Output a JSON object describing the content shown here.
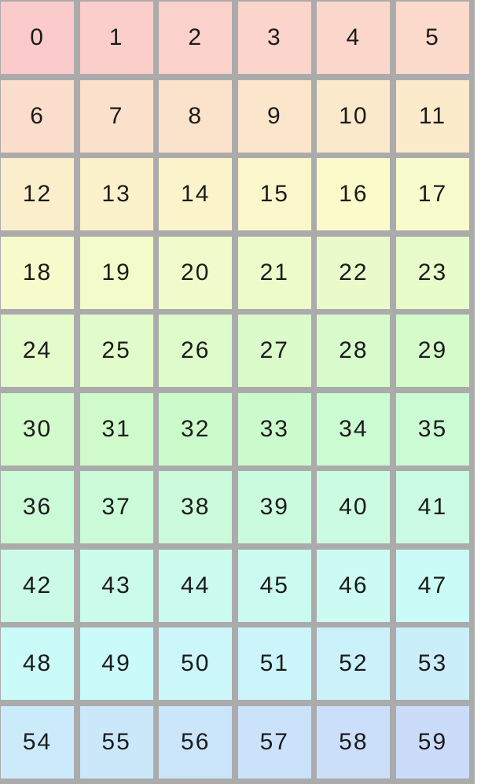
{
  "page": {
    "background_color": "#ffffff"
  },
  "grid": {
    "columns": 6,
    "rows": 10,
    "gap_color": "#ababab",
    "cell_text_color": "#1b1b1b",
    "cells": [
      {
        "label": "0",
        "color": "hsl(0.0, 85%, 89%)"
      },
      {
        "label": "1",
        "color": "hsl(3.7, 85%, 89%)"
      },
      {
        "label": "2",
        "color": "hsl(7.4, 85%, 89%)"
      },
      {
        "label": "3",
        "color": "hsl(11.1, 85%, 89%)"
      },
      {
        "label": "4",
        "color": "hsl(14.8, 85%, 89%)"
      },
      {
        "label": "5",
        "color": "hsl(18.5, 85%, 89%)"
      },
      {
        "label": "6",
        "color": "hsl(22.2, 85%, 89%)"
      },
      {
        "label": "7",
        "color": "hsl(25.9, 85%, 89%)"
      },
      {
        "label": "8",
        "color": "hsl(29.6, 85%, 89%)"
      },
      {
        "label": "9",
        "color": "hsl(33.3, 85%, 89%)"
      },
      {
        "label": "10",
        "color": "hsl(37.0, 85%, 89%)"
      },
      {
        "label": "11",
        "color": "hsl(40.7, 85%, 89%)"
      },
      {
        "label": "12",
        "color": "hsl(44.4, 85%, 89%)"
      },
      {
        "label": "13",
        "color": "hsl(48.1, 85%, 89%)"
      },
      {
        "label": "14",
        "color": "hsl(51.8, 85%, 89%)"
      },
      {
        "label": "15",
        "color": "hsl(55.5, 85%, 89%)"
      },
      {
        "label": "16",
        "color": "hsl(59.2, 85%, 89%)"
      },
      {
        "label": "17",
        "color": "hsl(62.9, 85%, 89%)"
      },
      {
        "label": "18",
        "color": "hsl(66.6, 85%, 89%)"
      },
      {
        "label": "19",
        "color": "hsl(70.3, 85%, 89%)"
      },
      {
        "label": "20",
        "color": "hsl(74.0, 85%, 89%)"
      },
      {
        "label": "21",
        "color": "hsl(77.7, 85%, 89%)"
      },
      {
        "label": "22",
        "color": "hsl(81.4, 85%, 89%)"
      },
      {
        "label": "23",
        "color": "hsl(85.1, 85%, 89%)"
      },
      {
        "label": "24",
        "color": "hsl(88.8, 85%, 89%)"
      },
      {
        "label": "25",
        "color": "hsl(92.5, 85%, 89%)"
      },
      {
        "label": "26",
        "color": "hsl(96.2, 85%, 89%)"
      },
      {
        "label": "27",
        "color": "hsl(99.9, 85%, 89%)"
      },
      {
        "label": "28",
        "color": "hsl(103.6, 85%, 89%)"
      },
      {
        "label": "29",
        "color": "hsl(107.3, 85%, 89%)"
      },
      {
        "label": "30",
        "color": "hsl(111.0, 85%, 89%)"
      },
      {
        "label": "31",
        "color": "hsl(114.7, 85%, 89%)"
      },
      {
        "label": "32",
        "color": "hsl(118.4, 85%, 89%)"
      },
      {
        "label": "33",
        "color": "hsl(122.1, 85%, 89%)"
      },
      {
        "label": "34",
        "color": "hsl(125.8, 85%, 89%)"
      },
      {
        "label": "35",
        "color": "hsl(129.5, 85%, 89%)"
      },
      {
        "label": "36",
        "color": "hsl(133.2, 85%, 89%)"
      },
      {
        "label": "37",
        "color": "hsl(136.9, 85%, 89%)"
      },
      {
        "label": "38",
        "color": "hsl(140.6, 85%, 89%)"
      },
      {
        "label": "39",
        "color": "hsl(144.3, 85%, 89%)"
      },
      {
        "label": "40",
        "color": "hsl(148.0, 85%, 89%)"
      },
      {
        "label": "41",
        "color": "hsl(151.7, 85%, 89%)"
      },
      {
        "label": "42",
        "color": "hsl(155.4, 85%, 89%)"
      },
      {
        "label": "43",
        "color": "hsl(159.1, 85%, 89%)"
      },
      {
        "label": "44",
        "color": "hsl(162.8, 85%, 89%)"
      },
      {
        "label": "45",
        "color": "hsl(166.5, 85%, 89%)"
      },
      {
        "label": "46",
        "color": "hsl(170.2, 85%, 89%)"
      },
      {
        "label": "47",
        "color": "hsl(173.9, 85%, 89%)"
      },
      {
        "label": "48",
        "color": "hsl(177.6, 85%, 89%)"
      },
      {
        "label": "49",
        "color": "hsl(181.3, 85%, 89%)"
      },
      {
        "label": "50",
        "color": "hsl(185.0, 85%, 89%)"
      },
      {
        "label": "51",
        "color": "hsl(188.7, 85%, 89%)"
      },
      {
        "label": "52",
        "color": "hsl(192.4, 85%, 89%)"
      },
      {
        "label": "53",
        "color": "hsl(196.1, 85%, 89%)"
      },
      {
        "label": "54",
        "color": "hsl(199.8, 85%, 89%)"
      },
      {
        "label": "55",
        "color": "hsl(203.5, 85%, 89%)"
      },
      {
        "label": "56",
        "color": "hsl(207.2, 85%, 89%)"
      },
      {
        "label": "57",
        "color": "hsl(210.9, 85%, 89%)"
      },
      {
        "label": "58",
        "color": "hsl(214.6, 85%, 89%)"
      },
      {
        "label": "59",
        "color": "hsl(218.3, 85%, 89%)"
      }
    ]
  }
}
